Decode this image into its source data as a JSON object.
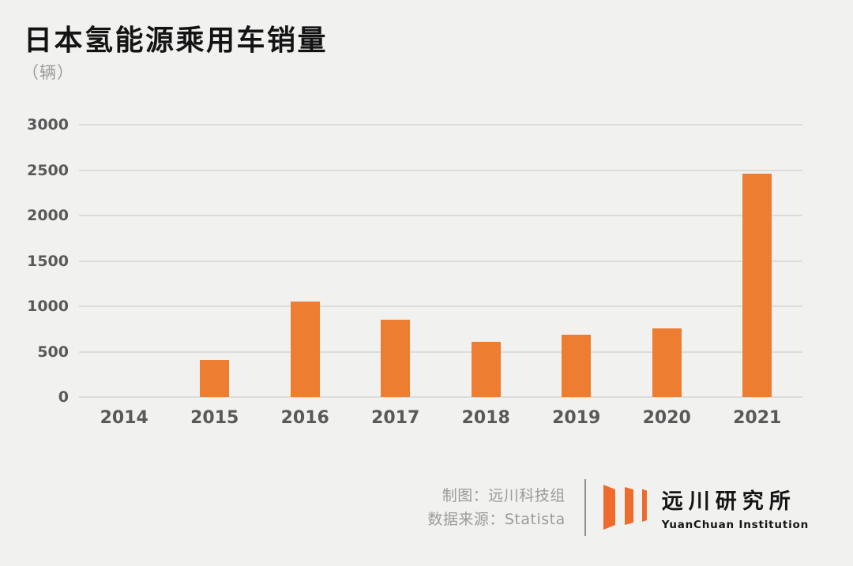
{
  "chart_data": {
    "type": "bar",
    "title": "日本氢能源乘用车销量",
    "unit_label": "（辆）",
    "categories": [
      "2014",
      "2015",
      "2016",
      "2017",
      "2018",
      "2019",
      "2020",
      "2021"
    ],
    "values": [
      0,
      411,
      1054,
      849,
      612,
      684,
      761,
      2464
    ],
    "xlabel": "",
    "ylabel": "",
    "ylim": [
      0,
      3000
    ],
    "yticks": [
      0,
      500,
      1000,
      1500,
      2000,
      2500,
      3000
    ],
    "grid": true,
    "legend_position": "none",
    "bar_color": "#ED7D31"
  },
  "footer": {
    "credit_maker": "制图：远川科技组",
    "credit_source": "数据来源：Statista",
    "logo": {
      "name_cn": "远川研究所",
      "name_en": "YuanChuan Institution",
      "color": "#EE6B2D"
    }
  },
  "theme": {
    "background": "#F1F1EF",
    "grid_color": "#DCDCDA",
    "axis_text_color": "#595959",
    "muted_text_color": "#9B9B9B",
    "title_color": "#141414"
  }
}
